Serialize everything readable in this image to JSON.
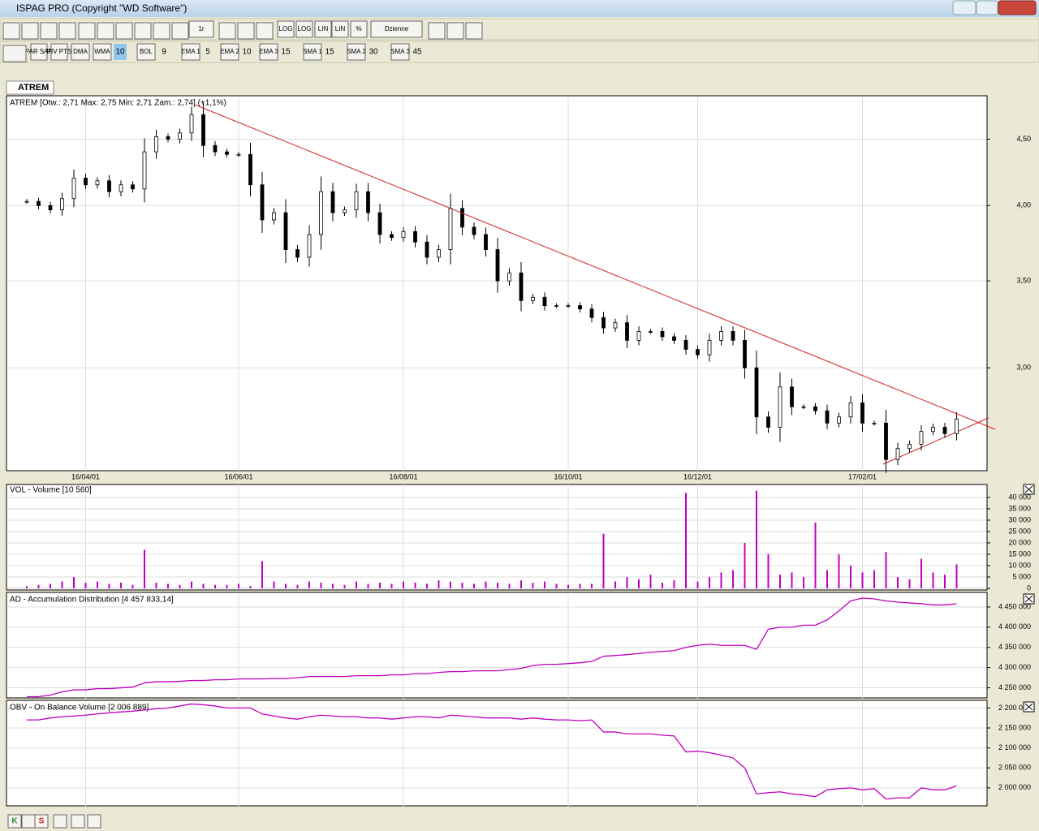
{
  "window": {
    "title": "ISPAG PRO (Copyright \"WD Software\")"
  },
  "toolbar1": [
    "1r",
    "LOG",
    "LOG",
    "LIN",
    "LIN",
    "%",
    "Dzienne"
  ],
  "toolbar2": [
    "PAR SAR",
    "PIV PTS",
    "DMA",
    "WMA",
    "10",
    "BOL",
    "9",
    "EMA 1",
    "5",
    "EMA 2",
    "10",
    "EMA 3",
    "15",
    "SMA 1",
    "15",
    "SMA 2",
    "30",
    "SMA 3",
    "45"
  ],
  "bottom_toolbar": [
    "K",
    "S"
  ],
  "tab": "ATREM",
  "categories": [
    null,
    null,
    null,
    null,
    null,
    "16/04/01",
    null,
    null,
    null,
    null,
    null,
    null,
    null,
    null,
    null,
    null,
    null,
    null,
    "16/06/01",
    null,
    null,
    null,
    null,
    null,
    null,
    null,
    null,
    null,
    null,
    null,
    null,
    null,
    "16/08/01",
    null,
    null,
    null,
    null,
    null,
    null,
    null,
    null,
    null,
    null,
    null,
    null,
    null,
    "16/10/01",
    null,
    null,
    null,
    null,
    null,
    null,
    null,
    null,
    null,
    null,
    "16/12/01",
    null,
    null,
    null,
    null,
    null,
    null,
    null,
    null,
    null,
    null,
    null,
    null,
    null,
    "17/02/01",
    null,
    null,
    null,
    null,
    null,
    null,
    null,
    null
  ],
  "price": {
    "type": "candlestick",
    "label": "ATREM [Otw.: 2,71  Max: 2,75  Min: 2,71  Zam.: 2,74] (+1,1%)",
    "log": true,
    "ylim": [
      2.5,
      4.86
    ],
    "yticks": [
      {
        "value": 3,
        "label": "3,00"
      },
      {
        "value": 3.5,
        "label": "3,50"
      },
      {
        "value": 4,
        "label": "4,00"
      },
      {
        "value": 4.5,
        "label": "4,50"
      }
    ],
    "close": [
      4.03,
      4.0,
      3.97,
      4.05,
      4.2,
      4.15,
      4.18,
      4.1,
      4.15,
      4.12,
      4.4,
      4.52,
      4.5,
      4.55,
      4.7,
      4.45,
      4.4,
      4.38,
      4.38,
      4.15,
      3.9,
      3.95,
      3.7,
      3.65,
      3.8,
      4.1,
      3.95,
      3.97,
      4.1,
      3.95,
      3.8,
      3.78,
      3.82,
      3.75,
      3.65,
      3.7,
      3.98,
      3.85,
      3.8,
      3.7,
      3.5,
      3.55,
      3.38,
      3.4,
      3.35,
      3.35,
      3.35,
      3.33,
      3.28,
      3.22,
      3.25,
      3.15,
      3.2,
      3.2,
      3.17,
      3.15,
      3.1,
      3.07,
      3.15,
      3.2,
      3.15,
      3.0,
      2.75,
      2.7,
      2.9,
      2.8,
      2.8,
      2.78,
      2.72,
      2.75,
      2.82,
      2.72,
      2.72,
      2.55,
      2.6,
      2.62,
      2.68,
      2.7,
      2.67,
      2.74
    ]
  },
  "volume": {
    "type": "bar",
    "label": "VOL - Volume [10 560]",
    "color": "#c000c0",
    "ylim": [
      0,
      45700
    ],
    "yticks": [
      0,
      {
        "value": 5000,
        "label": "5 000"
      },
      {
        "value": 10000,
        "label": "10 000"
      },
      {
        "value": 15000,
        "label": "15 000"
      },
      {
        "value": 20000,
        "label": "20 000"
      },
      {
        "value": 25000,
        "label": "25 000"
      },
      {
        "value": 30000,
        "label": "30 000"
      },
      {
        "value": 35000,
        "label": "35 000"
      },
      {
        "value": 40000,
        "label": "40 000"
      }
    ],
    "values": [
      1000,
      1500,
      2000,
      3000,
      5000,
      2500,
      3000,
      2000,
      2500,
      1500,
      17000,
      2500,
      2000,
      1500,
      3000,
      2000,
      1500,
      1500,
      2000,
      1000,
      12000,
      3000,
      2000,
      1500,
      3000,
      2500,
      2000,
      1500,
      3000,
      2000,
      2500,
      2000,
      3000,
      2500,
      2000,
      3500,
      3000,
      2500,
      2000,
      3000,
      2500,
      2000,
      3500,
      2500,
      3000,
      2000,
      1500,
      2000,
      2000,
      24000,
      3000,
      5000,
      4000,
      6000,
      2500,
      3500,
      42000,
      3000,
      5000,
      7000,
      8000,
      20000,
      43000,
      15000,
      6000,
      7000,
      5000,
      29000,
      8000,
      15000,
      10000,
      7000,
      8000,
      16000,
      5000,
      4000,
      13000,
      7000,
      6000,
      10560
    ]
  },
  "ad": {
    "type": "line",
    "label": "AD - Accumulation Distribution [4 457 833,14]",
    "color": "#c000c0",
    "ylim": [
      4225000,
      4482000
    ],
    "yticks": [
      {
        "value": 4250000,
        "label": "4 250 000"
      },
      {
        "value": 4300000,
        "label": "4 300 000"
      },
      {
        "value": 4350000,
        "label": "4 350 000"
      },
      {
        "value": 4400000,
        "label": "4 400 000"
      },
      {
        "value": 4450000,
        "label": "4 450 000"
      }
    ],
    "values": [
      4228000,
      4228000,
      4232000,
      4240000,
      4245000,
      4245000,
      4248000,
      4248000,
      4250000,
      4252000,
      4262000,
      4265000,
      4265000,
      4266000,
      4268000,
      4268000,
      4270000,
      4270000,
      4272000,
      4272000,
      4272000,
      4273000,
      4273000,
      4275000,
      4278000,
      4278000,
      4278000,
      4278000,
      4280000,
      4280000,
      4280000,
      4282000,
      4282000,
      4285000,
      4285000,
      4288000,
      4290000,
      4290000,
      4292000,
      4292000,
      4292000,
      4295000,
      4298000,
      4305000,
      4308000,
      4308000,
      4310000,
      4312000,
      4315000,
      4328000,
      4330000,
      4332000,
      4335000,
      4338000,
      4340000,
      4342000,
      4350000,
      4355000,
      4358000,
      4355000,
      4355000,
      4355000,
      4345000,
      4395000,
      4400000,
      4400000,
      4405000,
      4405000,
      4418000,
      4440000,
      4465000,
      4472000,
      4470000,
      4465000,
      4462000,
      4460000,
      4458000,
      4455000,
      4455000,
      4457833
    ]
  },
  "obv": {
    "type": "line",
    "label": "OBV - On Balance Volume [2 006 889]",
    "color": "#c000c0",
    "ylim": [
      1955000,
      2215000
    ],
    "yticks": [
      {
        "value": 2000000,
        "label": "2 000 000"
      },
      {
        "value": 2050000,
        "label": "2 050 000"
      },
      {
        "value": 2100000,
        "label": "2 100 000"
      },
      {
        "value": 2150000,
        "label": "2 150 000"
      },
      {
        "value": 2200000,
        "label": "2 200 000"
      }
    ],
    "values": [
      2170000,
      2170000,
      2175000,
      2178000,
      2180000,
      2182000,
      2185000,
      2188000,
      2190000,
      2192000,
      2195000,
      2198000,
      2200000,
      2205000,
      2210000,
      2208000,
      2205000,
      2200000,
      2200000,
      2200000,
      2185000,
      2180000,
      2175000,
      2172000,
      2178000,
      2182000,
      2180000,
      2178000,
      2178000,
      2175000,
      2175000,
      2172000,
      2175000,
      2178000,
      2178000,
      2175000,
      2182000,
      2180000,
      2178000,
      2175000,
      2175000,
      2175000,
      2172000,
      2175000,
      2172000,
      2170000,
      2170000,
      2168000,
      2170000,
      2140000,
      2140000,
      2135000,
      2135000,
      2135000,
      2132000,
      2130000,
      2090000,
      2092000,
      2088000,
      2082000,
      2075000,
      2050000,
      1985000,
      1988000,
      1990000,
      1985000,
      1982000,
      1978000,
      1995000,
      1998000,
      2000000,
      1995000,
      1998000,
      1972000,
      1975000,
      1975000,
      2000000,
      1995000,
      1995000,
      2005000
    ]
  }
}
